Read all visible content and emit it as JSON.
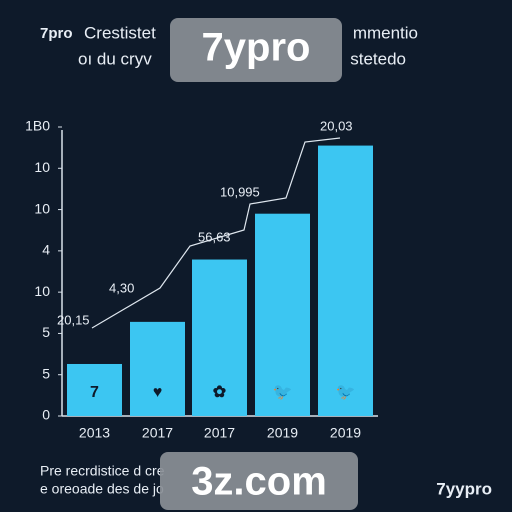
{
  "chart_data": {
    "type": "bar",
    "logo": "7pro",
    "title_parts": [
      "Crestistet",
      "mmentio"
    ],
    "subtitle_parts": [
      "oı du cryv",
      "stetedo"
    ],
    "categories": [
      "2013",
      "2017",
      "2017",
      "2019",
      "2019"
    ],
    "values": [
      1.26,
      2.28,
      3.79,
      4.9,
      6.55
    ],
    "bar_icons": [
      "7",
      "♥",
      "✿",
      "🐦",
      "🐦"
    ],
    "color": "#3cc6f2",
    "ylim": [
      0,
      7
    ],
    "yticks": [
      {
        "value": 0,
        "label": "0"
      },
      {
        "value": 1,
        "label": "5"
      },
      {
        "value": 2,
        "label": "5"
      },
      {
        "value": 3,
        "label": "10"
      },
      {
        "value": 4,
        "label": "4"
      },
      {
        "value": 5,
        "label": "10"
      },
      {
        "value": 6,
        "label": "10"
      },
      {
        "value": 7,
        "label": "1B0"
      }
    ],
    "annotations": [
      "20,15",
      "4,30",
      "56,63",
      "10,995",
      "20,03"
    ],
    "footer": [
      "Pre recrdistice d cre",
      "e oreoade des de jo"
    ],
    "footer_logo": "7yypro",
    "watermarks": [
      "7ypro",
      "3z.com"
    ]
  }
}
